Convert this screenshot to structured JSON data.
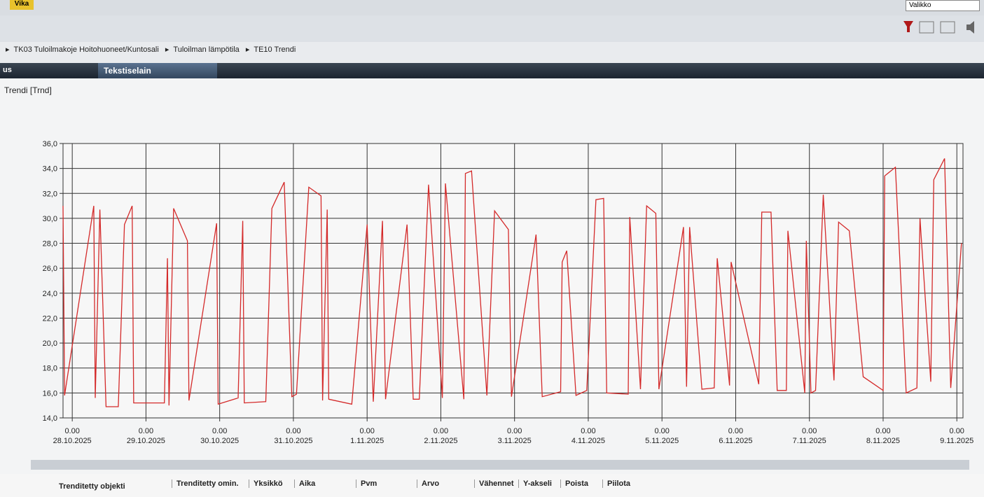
{
  "top": {
    "button": "Vika",
    "menu": "Valikko"
  },
  "breadcrumb": [
    "TK03 Tuloilmakoje Hoitohuoneet/Kuntosali",
    "Tuloilman lämpötila",
    "TE10 Trendi"
  ],
  "tabs": [
    "us",
    "Tekstiselain"
  ],
  "panel_title": "Trendi [Trnd]",
  "chart_data": {
    "type": "line",
    "color": "#d42a2a",
    "grid": true,
    "x": [
      "2025-10-27T21:00",
      "2025-10-27T21:30",
      "2025-10-28T07:00",
      "2025-10-28T07:30",
      "2025-10-28T09:00",
      "2025-10-28T11:00",
      "2025-10-28T15:00",
      "2025-10-28T17:00",
      "2025-10-28T19:30",
      "2025-10-28T20:00",
      "2025-10-29T06:00",
      "2025-10-29T07:00",
      "2025-10-29T07:30",
      "2025-10-29T09:00",
      "2025-10-29T13:30",
      "2025-10-29T14:00",
      "2025-10-29T23:00",
      "2025-10-29T23:30",
      "2025-10-30T06:00",
      "2025-10-30T07:30",
      "2025-10-30T08:00",
      "2025-10-30T15:00",
      "2025-10-30T17:00",
      "2025-10-30T21:00",
      "2025-10-30T23:30",
      "2025-10-31T01:00",
      "2025-10-31T05:00",
      "2025-10-31T09:00",
      "2025-10-31T09:30",
      "2025-10-31T11:00",
      "2025-10-31T11:30",
      "2025-10-31T19:00",
      "2025-11-01T00:00",
      "2025-11-01T02:00",
      "2025-11-01T05:00",
      "2025-11-01T06:00",
      "2025-11-01T13:00",
      "2025-11-01T15:00",
      "2025-11-01T17:00",
      "2025-11-01T20:00",
      "2025-11-02T00:30",
      "2025-11-02T01:30",
      "2025-11-02T07:30",
      "2025-11-02T08:00",
      "2025-11-02T10:00",
      "2025-11-02T15:00",
      "2025-11-02T17:30",
      "2025-11-02T22:00",
      "2025-11-02T23:00",
      "2025-11-03T07:00",
      "2025-11-03T09:00",
      "2025-11-03T15:00",
      "2025-11-03T15:30",
      "2025-11-03T17:00",
      "2025-11-03T20:00",
      "2025-11-03T23:30",
      "2025-11-04T02:30",
      "2025-11-04T05:00",
      "2025-11-04T06:00",
      "2025-11-04T13:00",
      "2025-11-04T13:30",
      "2025-11-04T17:00",
      "2025-11-04T19:00",
      "2025-11-04T22:00",
      "2025-11-04T23:00",
      "2025-11-05T07:00",
      "2025-11-05T08:00",
      "2025-11-05T09:00",
      "2025-11-05T13:00",
      "2025-11-05T17:00",
      "2025-11-05T18:00",
      "2025-11-05T22:00",
      "2025-11-05T22:30",
      "2025-11-06T07:30",
      "2025-11-06T08:30",
      "2025-11-06T11:30",
      "2025-11-06T13:30",
      "2025-11-06T16:30",
      "2025-11-06T17:00",
      "2025-11-06T22:30",
      "2025-11-06T23:00",
      "2025-11-07T00:30",
      "2025-11-07T02:00",
      "2025-11-07T04:30",
      "2025-11-07T08:00",
      "2025-11-07T09:30",
      "2025-11-07T13:00",
      "2025-11-07T17:30",
      "2025-11-08T00:00",
      "2025-11-08T00:30",
      "2025-11-08T04:00",
      "2025-11-08T07:30",
      "2025-11-08T11:00",
      "2025-11-08T12:00",
      "2025-11-08T15:30",
      "2025-11-08T16:30",
      "2025-11-08T20:00",
      "2025-11-08T22:00",
      "2025-11-09T01:30"
    ],
    "values": [
      31.0,
      15.8,
      31.0,
      15.6,
      30.7,
      14.9,
      14.9,
      29.5,
      31.0,
      15.2,
      15.2,
      26.8,
      15.0,
      30.8,
      28.2,
      15.4,
      29.6,
      15.1,
      15.6,
      29.8,
      15.2,
      15.3,
      30.8,
      32.9,
      15.7,
      15.9,
      32.5,
      31.8,
      15.4,
      30.7,
      15.5,
      15.1,
      29.5,
      15.3,
      29.8,
      15.5,
      29.5,
      15.5,
      15.5,
      32.7,
      15.6,
      32.8,
      15.5,
      33.6,
      33.8,
      15.8,
      30.6,
      29.1,
      15.7,
      28.7,
      15.7,
      16.1,
      26.5,
      27.4,
      15.8,
      16.2,
      31.5,
      31.6,
      16.0,
      15.9,
      30.1,
      16.3,
      31.0,
      30.4,
      16.3,
      29.3,
      16.5,
      29.3,
      16.3,
      16.4,
      26.8,
      16.6,
      26.5,
      16.7,
      30.5,
      30.5,
      16.2,
      16.2,
      29.0,
      16.0,
      28.2,
      16.0,
      16.2,
      31.9,
      17.0,
      29.7,
      29.0,
      17.3,
      16.2,
      33.4,
      34.1,
      16.0,
      16.4,
      30.0,
      16.9,
      33.1,
      34.8,
      16.4,
      28.0
    ],
    "xlim": [
      "2025-10-27T21:00",
      "2025-11-09T02:00"
    ],
    "xticks": [
      {
        "value": "2025-10-28T00:00",
        "label": [
          "0.00",
          "28.10.2025"
        ]
      },
      {
        "value": "2025-10-29T00:00",
        "label": [
          "0.00",
          "29.10.2025"
        ]
      },
      {
        "value": "2025-10-30T00:00",
        "label": [
          "0.00",
          "30.10.2025"
        ]
      },
      {
        "value": "2025-10-31T00:00",
        "label": [
          "0.00",
          "31.10.2025"
        ]
      },
      {
        "value": "2025-11-01T00:00",
        "label": [
          "0.00",
          "1.11.2025"
        ]
      },
      {
        "value": "2025-11-02T00:00",
        "label": [
          "0.00",
          "2.11.2025"
        ]
      },
      {
        "value": "2025-11-03T00:00",
        "label": [
          "0.00",
          "3.11.2025"
        ]
      },
      {
        "value": "2025-11-04T00:00",
        "label": [
          "0.00",
          "4.11.2025"
        ]
      },
      {
        "value": "2025-11-05T00:00",
        "label": [
          "0.00",
          "5.11.2025"
        ]
      },
      {
        "value": "2025-11-06T00:00",
        "label": [
          "0.00",
          "6.11.2025"
        ]
      },
      {
        "value": "2025-11-07T00:00",
        "label": [
          "0.00",
          "7.11.2025"
        ]
      },
      {
        "value": "2025-11-08T00:00",
        "label": [
          "0.00",
          "8.11.2025"
        ]
      },
      {
        "value": "2025-11-09T00:00",
        "label": [
          "0.00",
          "9.11.2025"
        ]
      }
    ],
    "ylim": [
      14,
      36
    ],
    "yticks": [
      {
        "value": 14,
        "label": "14,0"
      },
      {
        "value": 16,
        "label": "16,0"
      },
      {
        "value": 18,
        "label": "18,0"
      },
      {
        "value": 20,
        "label": "20,0"
      },
      {
        "value": 22,
        "label": "22,0"
      },
      {
        "value": 24,
        "label": "24,0"
      },
      {
        "value": 26,
        "label": "26,0"
      },
      {
        "value": 28,
        "label": "28,0"
      },
      {
        "value": 30,
        "label": "30,0"
      },
      {
        "value": 32,
        "label": "32,0"
      },
      {
        "value": 34,
        "label": "34,0"
      },
      {
        "value": 36,
        "label": "36,0"
      }
    ]
  },
  "table_header": [
    "Trenditetty objekti",
    "Trenditetty omin.",
    "Yksikkö",
    "Aika",
    "Pvm",
    "Arvo",
    "Vähennet",
    "Y-akseli",
    "Poista",
    "Piilota"
  ]
}
